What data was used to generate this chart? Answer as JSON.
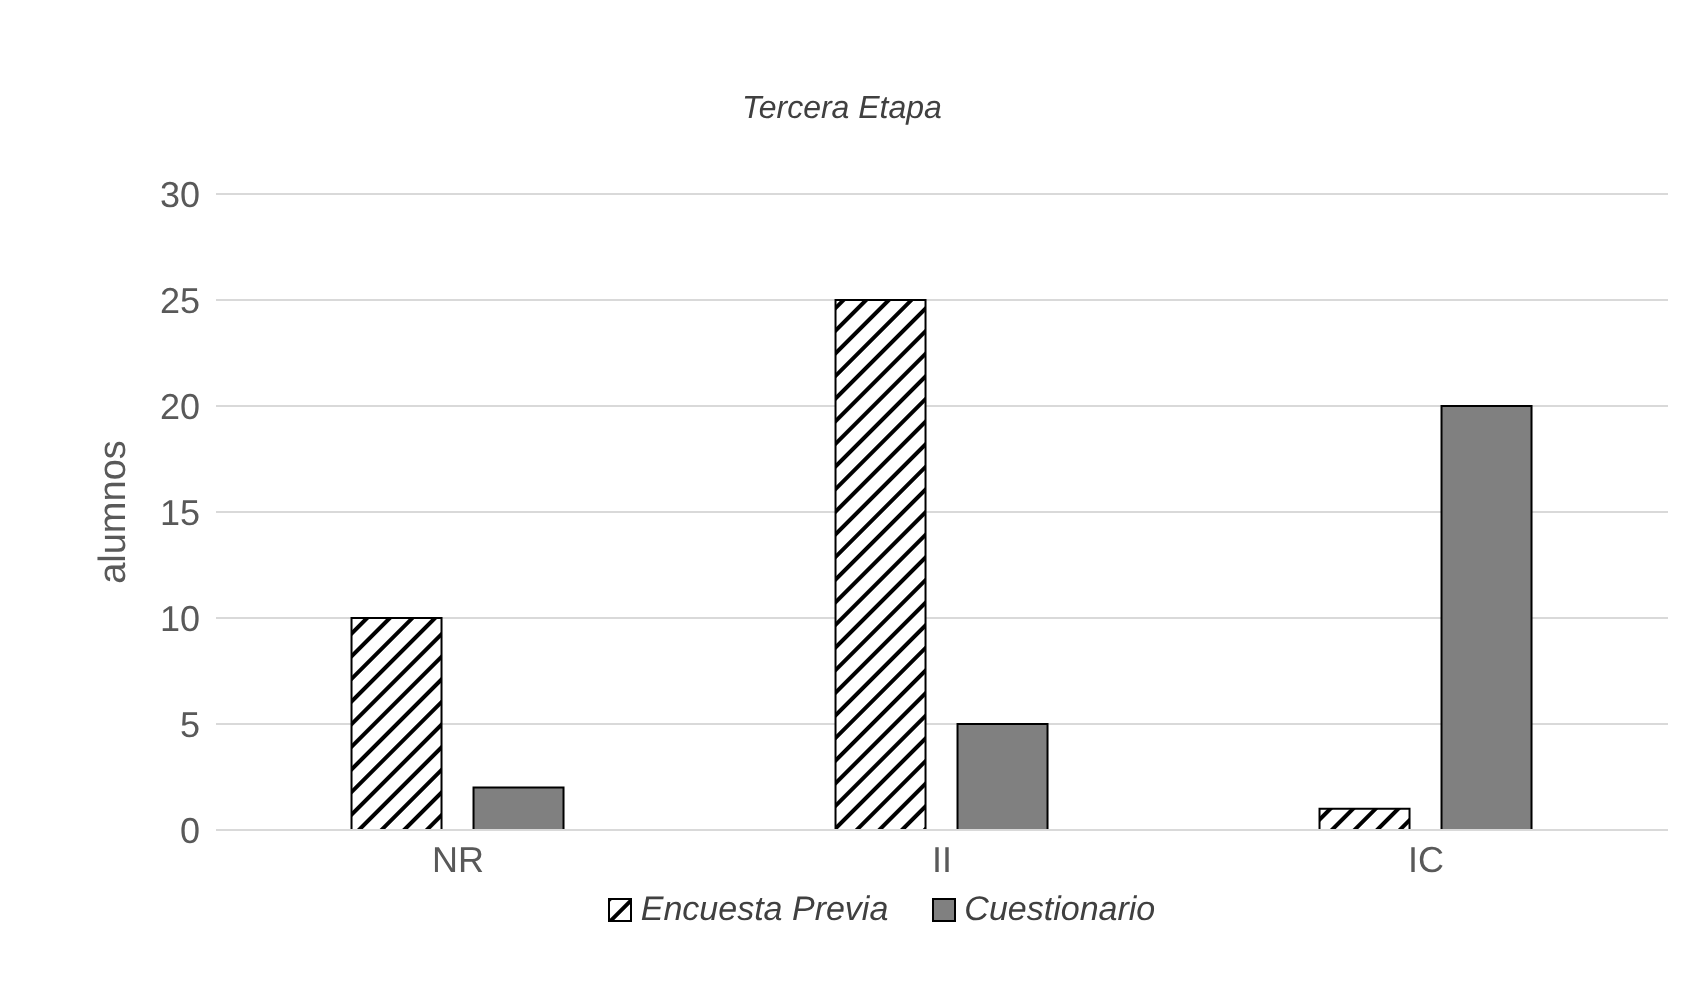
{
  "chart_data": {
    "type": "bar",
    "title": "Tercera Etapa",
    "ylabel": "alumnos",
    "categories": [
      "NR",
      "II",
      "IC"
    ],
    "series": [
      {
        "name": "Encuesta Previa",
        "color": "#000000",
        "values": [
          10,
          25,
          1
        ]
      },
      {
        "name": "Cuestionario",
        "color": "#808080",
        "values": [
          2,
          5,
          20
        ]
      }
    ],
    "ylim": [
      0,
      30
    ],
    "yticks": [
      0,
      5,
      10,
      15,
      20,
      25,
      30
    ],
    "grid": "y",
    "legend": "bottom"
  }
}
